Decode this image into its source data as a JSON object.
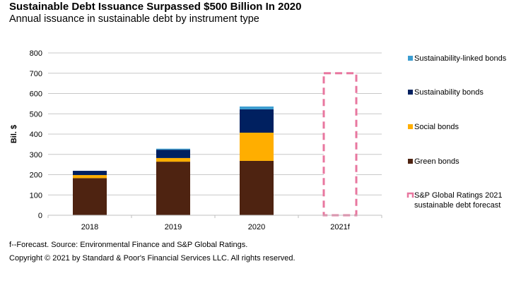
{
  "header": {
    "title": "Sustainable Debt Issuance Surpassed $500 Billion In 2020",
    "subtitle": "Annual issuance in sustainable debt by instrument type"
  },
  "footer": {
    "source": "f--Forecast. Source: Environmental Finance and S&P Global Ratings.",
    "copyright": "Copyright © 2021 by Standard & Poor's Financial Services LLC. All rights reserved."
  },
  "chart_data": {
    "type": "bar",
    "stacked": true,
    "title": "Sustainable Debt Issuance Surpassed $500 Billion In 2020",
    "subtitle": "Annual issuance in sustainable debt by instrument type",
    "xlabel": "",
    "ylabel": "Bil. $",
    "ylim": [
      0,
      800
    ],
    "yticks": [
      0,
      100,
      200,
      300,
      400,
      500,
      600,
      700,
      800
    ],
    "grid": true,
    "legend_position": "right",
    "categories": [
      "2018",
      "2019",
      "2020",
      "2021f"
    ],
    "series": [
      {
        "name": "Green bonds",
        "color": "#4e2311",
        "values": [
          183,
          264,
          268,
          null
        ]
      },
      {
        "name": "Social bonds",
        "color": "#ffae00",
        "values": [
          15,
          18,
          139,
          null
        ]
      },
      {
        "name": "Sustainability bonds",
        "color": "#002060",
        "values": [
          21,
          41,
          115,
          null
        ]
      },
      {
        "name": "Sustainability-linked bonds",
        "color": "#3c9dd0",
        "values": [
          0,
          5,
          14,
          null
        ]
      }
    ],
    "forecast": {
      "name": "S&P Global Ratings 2021 sustainable debt forecast",
      "category": "2021f",
      "value": 700,
      "color": "#e8779f",
      "style": "dashed-outline"
    },
    "legend": [
      {
        "label": "Sustainability-linked bonds",
        "color": "#3c9dd0",
        "kind": "square"
      },
      {
        "label": "Sustainability bonds",
        "color": "#002060",
        "kind": "square"
      },
      {
        "label": "Social bonds",
        "color": "#ffae00",
        "kind": "square"
      },
      {
        "label": "Green bonds",
        "color": "#4e2311",
        "kind": "square"
      },
      {
        "label": "S&P Global Ratings 2021 sustainable debt forecast",
        "label_lines": [
          "S&P Global Ratings 2021",
          "sustainable debt forecast"
        ],
        "color": "#e8779f",
        "kind": "dashed"
      }
    ]
  }
}
